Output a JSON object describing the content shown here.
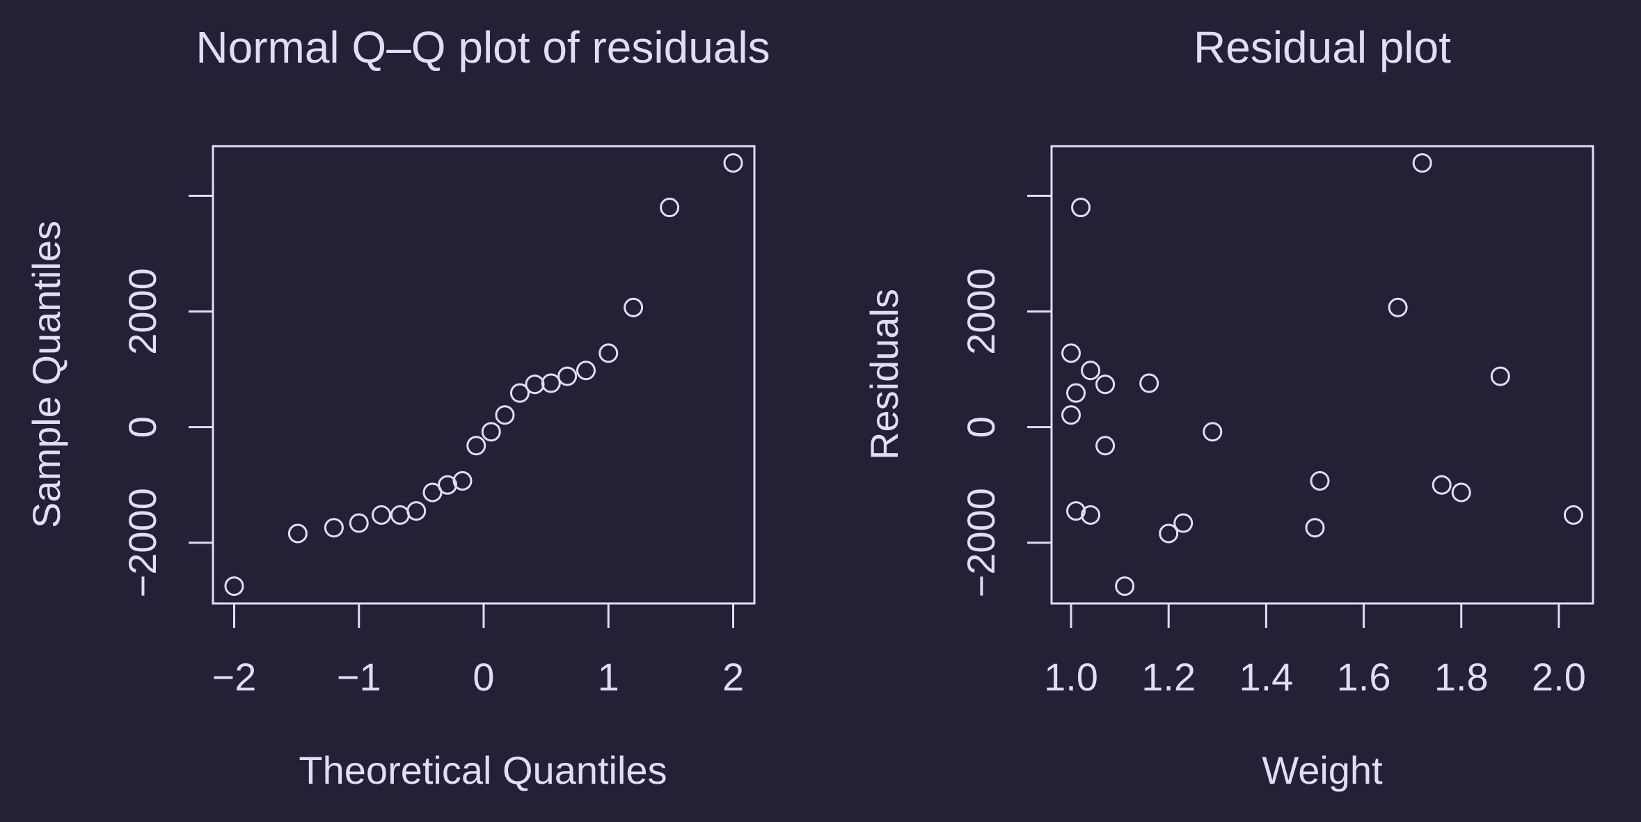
{
  "colors": {
    "background": "#232136",
    "foreground": "#e0def4"
  },
  "chart_data": [
    {
      "type": "scatter",
      "title": "Normal Q–Q plot of residuals",
      "xlabel": "Theoretical Quantiles",
      "ylabel": "Sample Quantiles",
      "xlim": [
        -2.17,
        2.17
      ],
      "ylim": [
        -3050,
        4860
      ],
      "x_ticks": [
        -2,
        -1,
        0,
        1,
        2
      ],
      "x_tick_labels": [
        "−2",
        "−1",
        "0",
        "1",
        "2"
      ],
      "y_ticks": [
        -2000,
        0,
        2000,
        4000
      ],
      "y_tick_labels": [
        "−2000",
        "0",
        "2000",
        ""
      ],
      "grid": false,
      "marker": "open-circle",
      "points": [
        {
          "x": -2.0,
          "y": -2750
        },
        {
          "x": -1.49,
          "y": -1840
        },
        {
          "x": -1.2,
          "y": -1740
        },
        {
          "x": -1.0,
          "y": -1660
        },
        {
          "x": -0.82,
          "y": -1520
        },
        {
          "x": -0.67,
          "y": -1520
        },
        {
          "x": -0.54,
          "y": -1450
        },
        {
          "x": -0.41,
          "y": -1130
        },
        {
          "x": -0.29,
          "y": -1000
        },
        {
          "x": -0.17,
          "y": -930
        },
        {
          "x": -0.06,
          "y": -320
        },
        {
          "x": 0.06,
          "y": -80
        },
        {
          "x": 0.17,
          "y": 210
        },
        {
          "x": 0.29,
          "y": 590
        },
        {
          "x": 0.41,
          "y": 740
        },
        {
          "x": 0.54,
          "y": 760
        },
        {
          "x": 0.67,
          "y": 880
        },
        {
          "x": 0.82,
          "y": 980
        },
        {
          "x": 1.0,
          "y": 1280
        },
        {
          "x": 1.2,
          "y": 2070
        },
        {
          "x": 1.49,
          "y": 3800
        },
        {
          "x": 2.0,
          "y": 4570
        }
      ]
    },
    {
      "type": "scatter",
      "title": "Residual plot",
      "xlabel": "Weight",
      "ylabel": "Residuals",
      "xlim": [
        0.96,
        2.07
      ],
      "ylim": [
        -3050,
        4860
      ],
      "x_ticks": [
        1.0,
        1.2,
        1.4,
        1.6,
        1.8,
        2.0
      ],
      "x_tick_labels": [
        "1.0",
        "1.2",
        "1.4",
        "1.6",
        "1.8",
        "2.0"
      ],
      "y_ticks": [
        -2000,
        0,
        2000,
        4000
      ],
      "y_tick_labels": [
        "−2000",
        "0",
        "2000",
        ""
      ],
      "grid": false,
      "marker": "open-circle",
      "points": [
        {
          "x": 1.0,
          "y": 1280
        },
        {
          "x": 1.0,
          "y": 210
        },
        {
          "x": 1.01,
          "y": 590
        },
        {
          "x": 1.01,
          "y": -1450
        },
        {
          "x": 1.02,
          "y": 3800
        },
        {
          "x": 1.04,
          "y": 980
        },
        {
          "x": 1.04,
          "y": -1520
        },
        {
          "x": 1.07,
          "y": 740
        },
        {
          "x": 1.07,
          "y": -320
        },
        {
          "x": 1.11,
          "y": -2750
        },
        {
          "x": 1.16,
          "y": 760
        },
        {
          "x": 1.2,
          "y": -1840
        },
        {
          "x": 1.23,
          "y": -1660
        },
        {
          "x": 1.29,
          "y": -80
        },
        {
          "x": 1.5,
          "y": -1740
        },
        {
          "x": 1.51,
          "y": -930
        },
        {
          "x": 1.67,
          "y": 2070
        },
        {
          "x": 1.72,
          "y": 4570
        },
        {
          "x": 1.76,
          "y": -1000
        },
        {
          "x": 1.8,
          "y": -1130
        },
        {
          "x": 1.88,
          "y": 880
        },
        {
          "x": 2.03,
          "y": -1520
        }
      ]
    }
  ]
}
